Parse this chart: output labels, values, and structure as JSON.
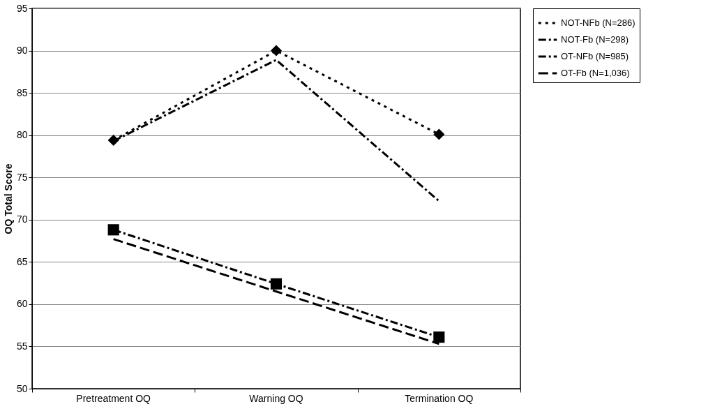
{
  "chart_data": {
    "type": "line",
    "ylabel": "OQ Total Score",
    "categories": [
      "Pretreatment OQ",
      "Warning OQ",
      "Termination OQ"
    ],
    "series": [
      {
        "name": "NOT-NFb (N=286)",
        "color": "#000000",
        "values": [
          79.4,
          90.0,
          80.1
        ],
        "marker": "diamond",
        "line_style": "dotted"
      },
      {
        "name": "NOT-Fb (N=298)",
        "color": "#000000",
        "values": [
          79.3,
          88.9,
          72.2
        ],
        "marker": "none",
        "line_style": "dashdot"
      },
      {
        "name": "OT-NFb (N=985)",
        "color": "#000000",
        "values": [
          68.8,
          62.4,
          56.1
        ],
        "marker": "square",
        "line_style": "dashdot"
      },
      {
        "name": "OT-Fb (N=1,036)",
        "color": "#000000",
        "values": [
          67.7,
          61.5,
          55.3
        ],
        "marker": "none",
        "line_style": "dashed"
      }
    ],
    "ylim": [
      50,
      95
    ],
    "yticks": [
      50,
      55,
      60,
      65,
      70,
      75,
      80,
      85,
      90,
      95
    ],
    "grid": "y",
    "legend": "right"
  }
}
